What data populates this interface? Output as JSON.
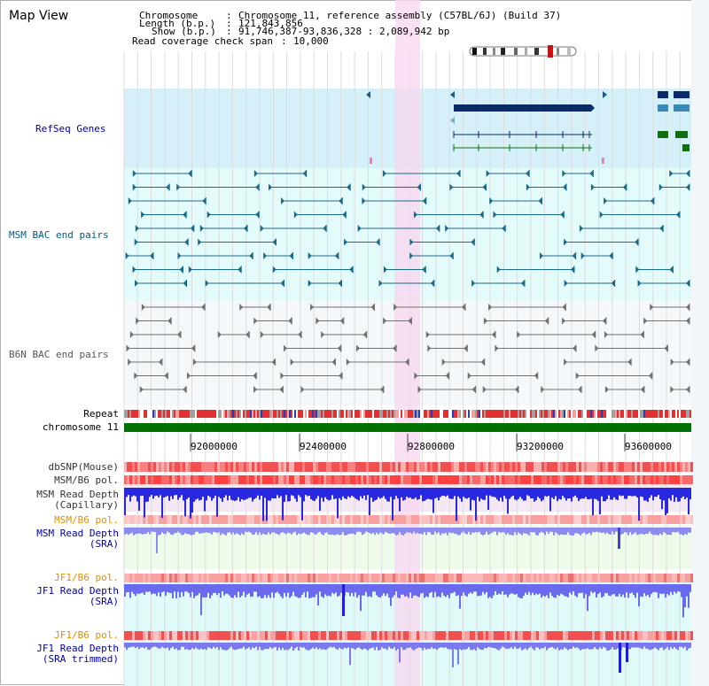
{
  "header": {
    "title": "Map View",
    "chromosome_label": "Chromosome",
    "chromosome_value": "Chromosome 11, reference assembly (C57BL/6J) (Build 37)",
    "length_label": "Length (b.p.)",
    "length_value": "121,843,856",
    "show_label": "Show (b.p.)",
    "show_value": "91,746,387-93,836,328 : 2,089,942 bp",
    "coverage_label": "Read coverage check span",
    "coverage_value": "10,000"
  },
  "tracks": {
    "refseq": "RefSeq Genes",
    "msm_bac": "MSM BAC end pairs",
    "b6n_bac": "B6N BAC end pairs",
    "repeat": "Repeat",
    "chromosome": "chromosome 11",
    "dbsnp": "dbSNP(Mouse)",
    "msm_b6_pol": "MSM/B6 pol.",
    "msm_depth_cap_1": "MSM Read Depth",
    "msm_depth_cap_2": "(Capillary)",
    "msm_b6_pol_2": "MSM/B6 pol.",
    "msm_depth_sra_1": "MSM Read Depth",
    "msm_depth_sra_2": "(SRA)",
    "jf1_b6_pol": "JF1/B6 pol.",
    "jf1_depth_sra_1": "JF1 Read Depth",
    "jf1_depth_sra_2": "(SRA)",
    "jf1_b6_pol_2": "JF1/B6 pol.",
    "jf1_depth_trim_1": "JF1 Read Depth",
    "jf1_depth_trim_2": "(SRA trimmed)"
  },
  "axis": {
    "ticks": [
      "92000000",
      "92400000",
      "92800000",
      "93200000",
      "93600000"
    ]
  },
  "colors": {
    "refseq_bg": "#d6f0fa",
    "msm_bg": "#e4fbfb",
    "b6n_bg": "#f4f8fa",
    "highlight": "#f8d8f0",
    "gene": "#0a2a6a",
    "msm_line": "#1a6a8a",
    "b6n_line": "#707070",
    "chromosome": "#007000",
    "depth_blue": "#2020e0",
    "depth_light": "#7070ee",
    "orange_label": "#e09000",
    "blue_label": "#0000a0",
    "teal_label": "#005a8a"
  }
}
